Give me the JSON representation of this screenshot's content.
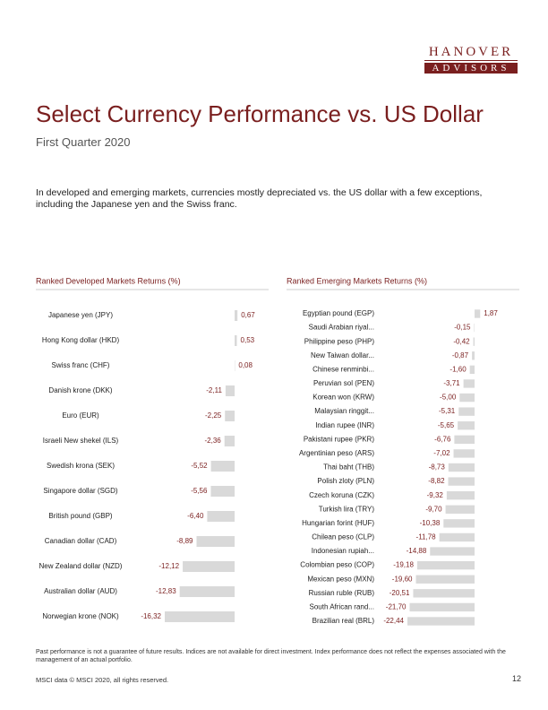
{
  "logo": {
    "top": "HANOVER",
    "bottom": "ADVISORS"
  },
  "title": "Select Currency Performance vs. US Dollar",
  "subtitle": "First Quarter 2020",
  "intro": "In developed and emerging markets, currencies mostly depreciated vs. the US dollar with a few exceptions, including the Japanese yen and the Swiss franc.",
  "chart_data": [
    {
      "type": "bar",
      "orientation": "horizontal",
      "title": "Ranked Developed Markets Returns (%)",
      "color": "#d9d9d9",
      "categories": [
        "Japanese yen (JPY)",
        "Hong Kong dollar (HKD)",
        "Swiss franc (CHF)",
        "Danish krone (DKK)",
        "Euro (EUR)",
        "Israeli New shekel (ILS)",
        "Swedish krona (SEK)",
        "Singapore dollar (SGD)",
        "British pound (GBP)",
        "Canadian dollar (CAD)",
        "New Zealand dollar (NZD)",
        "Australian dollar (AUD)",
        "Norwegian krone (NOK)"
      ],
      "values": [
        0.67,
        0.53,
        0.08,
        -2.11,
        -2.25,
        -2.36,
        -5.52,
        -5.56,
        -6.4,
        -8.89,
        -12.12,
        -12.83,
        -16.32
      ],
      "value_labels": [
        "0,67",
        "0,53",
        "0,08",
        "-2,11",
        "-2,25",
        "-2,36",
        "-5,52",
        "-5,56",
        "-6,40",
        "-8,89",
        "-12,12",
        "-12,83",
        "-16,32"
      ]
    },
    {
      "type": "bar",
      "orientation": "horizontal",
      "title": "Ranked Emerging Markets Returns (%)",
      "color": "#d9d9d9",
      "categories": [
        "Egyptian pound (EGP)",
        "Saudi Arabian riyal...",
        "Philippine peso (PHP)",
        "New Taiwan dollar...",
        "Chinese renminbi...",
        "Peruvian sol (PEN)",
        "Korean won (KRW)",
        "Malaysian ringgit...",
        "Indian rupee (INR)",
        "Pakistani rupee (PKR)",
        "Argentinian peso (ARS)",
        "Thai baht (THB)",
        "Polish zloty (PLN)",
        "Czech koruna (CZK)",
        "Turkish lira (TRY)",
        "Hungarian forint (HUF)",
        "Chilean peso (CLP)",
        "Indonesian rupiah...",
        "Colombian peso (COP)",
        "Mexican peso (MXN)",
        "Russian ruble (RUB)",
        "South African rand...",
        "Brazilian real (BRL)"
      ],
      "values": [
        1.87,
        -0.15,
        -0.42,
        -0.87,
        -1.6,
        -3.71,
        -5.0,
        -5.31,
        -5.65,
        -6.76,
        -7.02,
        -8.73,
        -8.82,
        -9.32,
        -9.7,
        -10.38,
        -11.78,
        -14.88,
        -19.18,
        -19.6,
        -20.51,
        -21.7,
        -22.44
      ],
      "value_labels": [
        "1,87",
        "-0,15",
        "-0,42",
        "-0,87",
        "-1,60",
        "-3,71",
        "-5,00",
        "-5,31",
        "-5,65",
        "-6,76",
        "-7,02",
        "-8,73",
        "-8,82",
        "-9,32",
        "-9,70",
        "-10,38",
        "-11,78",
        "-14,88",
        "-19,18",
        "-19,60",
        "-20,51",
        "-21,70",
        "-22,44"
      ]
    }
  ],
  "footer": {
    "disclaimer": "Past performance is not a guarantee of future results. Indices are not available for direct investment. Index performance does not reflect the expenses associated with the management of an actual portfolio.",
    "source": "MSCI data © MSCI 2020, all rights reserved.",
    "page": "12"
  }
}
